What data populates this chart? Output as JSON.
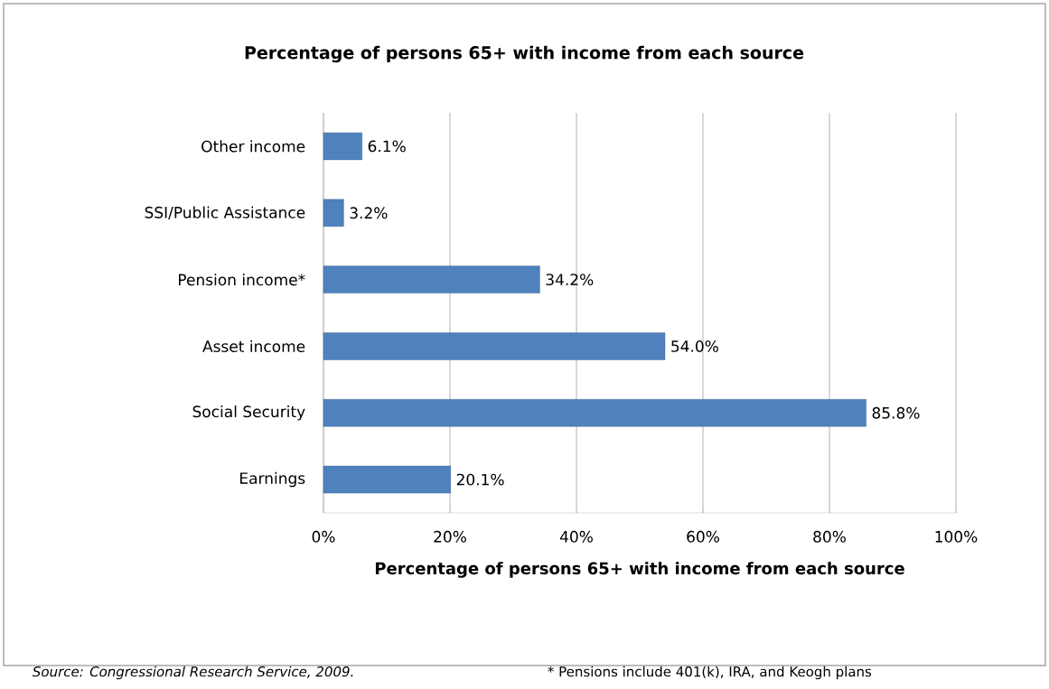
{
  "chart_data": {
    "type": "bar",
    "orientation": "horizontal",
    "title": "Percentage of persons 65+ with income from each source",
    "xlabel": "Percentage of persons 65+ with income from each source",
    "categories": [
      "Other income",
      "SSI/Public Assistance",
      "Pension income*",
      "Asset income",
      "Social Security",
      "Earnings"
    ],
    "values": [
      6.1,
      3.2,
      34.2,
      54.0,
      85.8,
      20.1
    ],
    "value_labels": [
      "6.1%",
      "3.2%",
      "34.2%",
      "54.0%",
      "85.8%",
      "20.1%"
    ],
    "color": "#4f81bd",
    "xlim": [
      0,
      100
    ],
    "xticks": [
      {
        "value": 0,
        "label": "0%"
      },
      {
        "value": 20,
        "label": "20%"
      },
      {
        "value": 40,
        "label": "40%"
      },
      {
        "value": 60,
        "label": "60%"
      },
      {
        "value": 80,
        "label": "80%"
      },
      {
        "value": 100,
        "label": "100%"
      }
    ],
    "grid": "x",
    "annotations": [
      "Source:  Congressional Research Service, 2009.",
      "* Pensions include 401(k), IRA, and Keogh plans"
    ]
  }
}
